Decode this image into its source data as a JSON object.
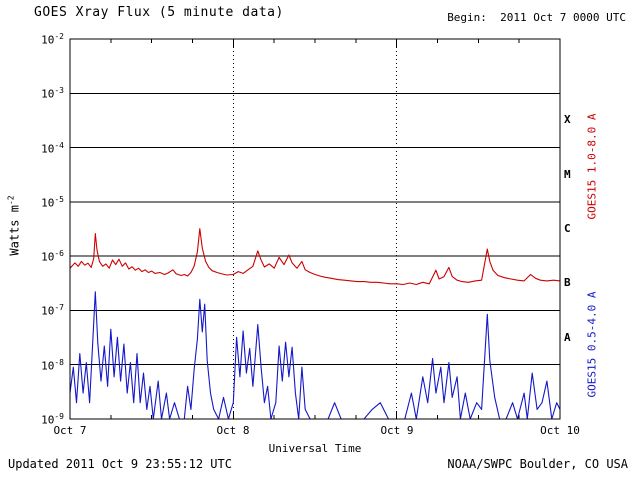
{
  "header": {
    "title": "GOES Xray Flux (5 minute data)",
    "begin_label": "Begin:  2011 Oct 7 0000 UTC"
  },
  "footer": {
    "updated": "Updated 2011 Oct 9 23:55:12 UTC",
    "credit": "NOAA/SWPC Boulder, CO USA"
  },
  "colors": {
    "long_channel": "#cc0100",
    "short_channel": "#1418c8",
    "axis": "#000000",
    "background": "#ffffff"
  },
  "axes": {
    "y_base": "10",
    "y_exps": [
      "-2",
      "-3",
      "-4",
      "-5",
      "-6",
      "-7",
      "-8",
      "-9"
    ],
    "ylabel_base": "Watts m",
    "ylabel_exp": "-2",
    "x_ticks": [
      "Oct 7",
      "Oct 8",
      "Oct 9",
      "Oct 10"
    ],
    "xlabel": "Universal Time",
    "class_letters": [
      "X",
      "M",
      "C",
      "B",
      "A"
    ]
  },
  "right_labels": {
    "long": "GOES15 1.0-8.0 A",
    "short": "GOES15 0.5-4.0 A"
  },
  "chart_data": {
    "type": "line",
    "title": "GOES Xray Flux (5 minute data)",
    "xlabel": "Universal Time",
    "ylabel": "Watts m^-2",
    "y_scale": "log",
    "ylim": [
      1e-09,
      0.01
    ],
    "x_unit": "days since 2011 Oct 7 0000 UTC",
    "x_range": [
      0,
      3
    ],
    "x_tick_labels": [
      "Oct 7",
      "Oct 8",
      "Oct 9",
      "Oct 10"
    ],
    "grid": {
      "horizontal": "solid line per decade",
      "vertical": "dotted line per day",
      "legend": "rotated labels right side"
    },
    "series": [
      {
        "name": "GOES15 1.0-8.0 A",
        "color": "#cc0100",
        "points": [
          [
            0.0,
            6e-07
          ],
          [
            0.03,
            7.5e-07
          ],
          [
            0.05,
            6.5e-07
          ],
          [
            0.07,
            8e-07
          ],
          [
            0.09,
            6.8e-07
          ],
          [
            0.11,
            7.4e-07
          ],
          [
            0.13,
            6.2e-07
          ],
          [
            0.145,
            9e-07
          ],
          [
            0.155,
            2.6e-06
          ],
          [
            0.165,
            1.3e-06
          ],
          [
            0.18,
            8e-07
          ],
          [
            0.2,
            6.5e-07
          ],
          [
            0.22,
            7.2e-07
          ],
          [
            0.24,
            6e-07
          ],
          [
            0.26,
            8.5e-07
          ],
          [
            0.28,
            7e-07
          ],
          [
            0.3,
            8.8e-07
          ],
          [
            0.32,
            6.5e-07
          ],
          [
            0.34,
            7.5e-07
          ],
          [
            0.36,
            5.8e-07
          ],
          [
            0.38,
            6.4e-07
          ],
          [
            0.4,
            5.5e-07
          ],
          [
            0.42,
            6e-07
          ],
          [
            0.44,
            5.2e-07
          ],
          [
            0.46,
            5.6e-07
          ],
          [
            0.48,
            5e-07
          ],
          [
            0.5,
            5.3e-07
          ],
          [
            0.52,
            4.8e-07
          ],
          [
            0.55,
            5e-07
          ],
          [
            0.58,
            4.6e-07
          ],
          [
            0.6,
            4.9e-07
          ],
          [
            0.63,
            5.6e-07
          ],
          [
            0.65,
            4.7e-07
          ],
          [
            0.68,
            4.4e-07
          ],
          [
            0.7,
            4.6e-07
          ],
          [
            0.72,
            4.3e-07
          ],
          [
            0.74,
            5e-07
          ],
          [
            0.76,
            6.5e-07
          ],
          [
            0.78,
            1.2e-06
          ],
          [
            0.795,
            3.2e-06
          ],
          [
            0.81,
            1.4e-06
          ],
          [
            0.83,
            8e-07
          ],
          [
            0.85,
            6.2e-07
          ],
          [
            0.87,
            5.4e-07
          ],
          [
            0.9,
            5e-07
          ],
          [
            0.93,
            4.7e-07
          ],
          [
            0.96,
            4.5e-07
          ],
          [
            1.0,
            4.6e-07
          ],
          [
            1.03,
            5.2e-07
          ],
          [
            1.06,
            4.8e-07
          ],
          [
            1.09,
            5.6e-07
          ],
          [
            1.12,
            6.5e-07
          ],
          [
            1.15,
            1.25e-06
          ],
          [
            1.17,
            8.5e-07
          ],
          [
            1.19,
            6.3e-07
          ],
          [
            1.22,
            7.2e-07
          ],
          [
            1.25,
            6e-07
          ],
          [
            1.28,
            9.5e-07
          ],
          [
            1.31,
            7e-07
          ],
          [
            1.34,
            1.05e-06
          ],
          [
            1.36,
            7.5e-07
          ],
          [
            1.39,
            6e-07
          ],
          [
            1.42,
            8e-07
          ],
          [
            1.44,
            5.6e-07
          ],
          [
            1.47,
            5e-07
          ],
          [
            1.5,
            4.6e-07
          ],
          [
            1.53,
            4.3e-07
          ],
          [
            1.56,
            4.1e-07
          ],
          [
            1.6,
            3.9e-07
          ],
          [
            1.64,
            3.7e-07
          ],
          [
            1.68,
            3.6e-07
          ],
          [
            1.72,
            3.5e-07
          ],
          [
            1.76,
            3.4e-07
          ],
          [
            1.8,
            3.4e-07
          ],
          [
            1.84,
            3.3e-07
          ],
          [
            1.88,
            3.3e-07
          ],
          [
            1.92,
            3.2e-07
          ],
          [
            1.96,
            3.1e-07
          ],
          [
            2.0,
            3.1e-07
          ],
          [
            2.04,
            3e-07
          ],
          [
            2.08,
            3.2e-07
          ],
          [
            2.12,
            3e-07
          ],
          [
            2.16,
            3.3e-07
          ],
          [
            2.2,
            3.1e-07
          ],
          [
            2.24,
            5.5e-07
          ],
          [
            2.26,
            3.8e-07
          ],
          [
            2.29,
            4.2e-07
          ],
          [
            2.32,
            6.2e-07
          ],
          [
            2.34,
            4.2e-07
          ],
          [
            2.37,
            3.6e-07
          ],
          [
            2.4,
            3.4e-07
          ],
          [
            2.44,
            3.3e-07
          ],
          [
            2.48,
            3.5e-07
          ],
          [
            2.52,
            3.6e-07
          ],
          [
            2.555,
            1.35e-06
          ],
          [
            2.57,
            8e-07
          ],
          [
            2.59,
            5.5e-07
          ],
          [
            2.62,
            4.4e-07
          ],
          [
            2.66,
            4e-07
          ],
          [
            2.7,
            3.8e-07
          ],
          [
            2.74,
            3.6e-07
          ],
          [
            2.78,
            3.5e-07
          ],
          [
            2.82,
            4.6e-07
          ],
          [
            2.85,
            3.9e-07
          ],
          [
            2.88,
            3.6e-07
          ],
          [
            2.92,
            3.5e-07
          ],
          [
            2.96,
            3.6e-07
          ],
          [
            3.0,
            3.5e-07
          ]
        ]
      },
      {
        "name": "GOES15 0.5-4.0 A",
        "color": "#1418c8",
        "points": [
          [
            0.0,
            3e-09
          ],
          [
            0.02,
            9e-09
          ],
          [
            0.04,
            2e-09
          ],
          [
            0.06,
            1.6e-08
          ],
          [
            0.08,
            3e-09
          ],
          [
            0.1,
            1.1e-08
          ],
          [
            0.12,
            2e-09
          ],
          [
            0.14,
            3e-08
          ],
          [
            0.155,
            2.2e-07
          ],
          [
            0.17,
            2.5e-08
          ],
          [
            0.19,
            5e-09
          ],
          [
            0.21,
            2.2e-08
          ],
          [
            0.23,
            4e-09
          ],
          [
            0.25,
            4.5e-08
          ],
          [
            0.27,
            6e-09
          ],
          [
            0.29,
            3.2e-08
          ],
          [
            0.31,
            5e-09
          ],
          [
            0.33,
            2.4e-08
          ],
          [
            0.35,
            3e-09
          ],
          [
            0.37,
            1.1e-08
          ],
          [
            0.39,
            2e-09
          ],
          [
            0.41,
            1.6e-08
          ],
          [
            0.43,
            2e-09
          ],
          [
            0.45,
            7e-09
          ],
          [
            0.47,
            1.5e-09
          ],
          [
            0.49,
            4e-09
          ],
          [
            0.51,
            1e-09
          ],
          [
            0.54,
            5e-09
          ],
          [
            0.56,
            1e-09
          ],
          [
            0.59,
            3e-09
          ],
          [
            0.61,
            1e-09
          ],
          [
            0.64,
            2e-09
          ],
          [
            0.67,
            1e-09
          ],
          [
            0.7,
            1e-09
          ],
          [
            0.72,
            4e-09
          ],
          [
            0.74,
            1.5e-09
          ],
          [
            0.76,
            8e-09
          ],
          [
            0.78,
            3e-08
          ],
          [
            0.795,
            1.6e-07
          ],
          [
            0.81,
            4e-08
          ],
          [
            0.825,
            1.3e-07
          ],
          [
            0.84,
            1.2e-08
          ],
          [
            0.86,
            3e-09
          ],
          [
            0.88,
            1.5e-09
          ],
          [
            0.91,
            1e-09
          ],
          [
            0.94,
            2.5e-09
          ],
          [
            0.97,
            1e-09
          ],
          [
            1.0,
            2e-09
          ],
          [
            1.02,
            3.2e-08
          ],
          [
            1.04,
            6e-09
          ],
          [
            1.06,
            4.2e-08
          ],
          [
            1.08,
            7e-09
          ],
          [
            1.1,
            2e-08
          ],
          [
            1.12,
            4e-09
          ],
          [
            1.15,
            5.5e-08
          ],
          [
            1.17,
            9e-09
          ],
          [
            1.19,
            2e-09
          ],
          [
            1.21,
            4e-09
          ],
          [
            1.23,
            1e-09
          ],
          [
            1.26,
            2e-09
          ],
          [
            1.28,
            2.2e-08
          ],
          [
            1.3,
            5e-09
          ],
          [
            1.32,
            2.6e-08
          ],
          [
            1.34,
            6e-09
          ],
          [
            1.36,
            2.1e-08
          ],
          [
            1.38,
            3e-09
          ],
          [
            1.4,
            1e-09
          ],
          [
            1.42,
            9e-09
          ],
          [
            1.44,
            1.5e-09
          ],
          [
            1.47,
            1e-09
          ],
          [
            1.5,
            1e-09
          ],
          [
            1.54,
            1e-09
          ],
          [
            1.58,
            1e-09
          ],
          [
            1.62,
            2e-09
          ],
          [
            1.66,
            1e-09
          ],
          [
            1.7,
            1e-09
          ],
          [
            1.75,
            1e-09
          ],
          [
            1.8,
            1e-09
          ],
          [
            1.85,
            1.5e-09
          ],
          [
            1.9,
            2e-09
          ],
          [
            1.95,
            1e-09
          ],
          [
            2.0,
            1e-09
          ],
          [
            2.05,
            1e-09
          ],
          [
            2.09,
            3e-09
          ],
          [
            2.12,
            1e-09
          ],
          [
            2.16,
            6e-09
          ],
          [
            2.19,
            2e-09
          ],
          [
            2.22,
            1.3e-08
          ],
          [
            2.24,
            3e-09
          ],
          [
            2.27,
            9e-09
          ],
          [
            2.29,
            2e-09
          ],
          [
            2.32,
            1.1e-08
          ],
          [
            2.34,
            2.5e-09
          ],
          [
            2.37,
            6e-09
          ],
          [
            2.39,
            1e-09
          ],
          [
            2.42,
            3e-09
          ],
          [
            2.45,
            1e-09
          ],
          [
            2.49,
            2e-09
          ],
          [
            2.52,
            1.5e-09
          ],
          [
            2.555,
            8.5e-08
          ],
          [
            2.57,
            1.2e-08
          ],
          [
            2.6,
            2.5e-09
          ],
          [
            2.63,
            1e-09
          ],
          [
            2.67,
            1e-09
          ],
          [
            2.71,
            2e-09
          ],
          [
            2.74,
            1e-09
          ],
          [
            2.78,
            3e-09
          ],
          [
            2.8,
            1e-09
          ],
          [
            2.83,
            7e-09
          ],
          [
            2.86,
            1.5e-09
          ],
          [
            2.89,
            2e-09
          ],
          [
            2.92,
            5e-09
          ],
          [
            2.95,
            1e-09
          ],
          [
            2.98,
            2e-09
          ],
          [
            3.0,
            1.5e-09
          ]
        ]
      }
    ]
  }
}
